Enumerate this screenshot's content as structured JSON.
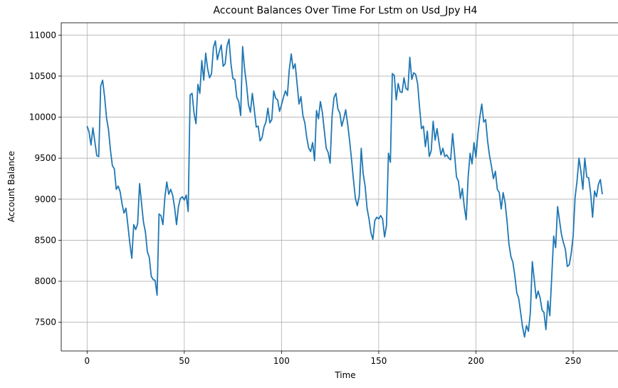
{
  "chart_data": {
    "type": "line",
    "title": "Account Balances Over Time For Lstm on Usd_Jpy H4",
    "xlabel": "Time",
    "ylabel": "Account Balance",
    "xlim": [
      -13.3,
      279.3
    ],
    "ylim": [
      7150,
      11150
    ],
    "xticks": [
      0,
      50,
      100,
      150,
      200,
      250
    ],
    "xtick_labels": [
      "0",
      "50",
      "100",
      "150",
      "200",
      "250"
    ],
    "yticks": [
      7500,
      8000,
      8500,
      9000,
      9500,
      10000,
      10500,
      11000
    ],
    "ytick_labels": [
      "7500",
      "8000",
      "8500",
      "9000",
      "9500",
      "10000",
      "10500",
      "11000"
    ],
    "grid": true,
    "series": [
      {
        "color": "#1f77b4",
        "x_start": 0,
        "x_step": 1,
        "values": [
          9890,
          9820,
          9660,
          9870,
          9700,
          9530,
          9520,
          10380,
          10450,
          10250,
          9990,
          9850,
          9600,
          9410,
          9370,
          9120,
          9160,
          9090,
          8940,
          8830,
          8890,
          8680,
          8460,
          8280,
          8690,
          8630,
          8700,
          9190,
          8950,
          8720,
          8600,
          8360,
          8290,
          8060,
          8020,
          8010,
          7830,
          8820,
          8800,
          8690,
          9020,
          9210,
          9060,
          9120,
          9050,
          8900,
          8690,
          8910,
          9010,
          9030,
          8990,
          9050,
          8850,
          10270,
          10290,
          10050,
          9920,
          10400,
          10290,
          10690,
          10450,
          10780,
          10590,
          10480,
          10530,
          10850,
          10930,
          10700,
          10800,
          10880,
          10620,
          10650,
          10870,
          10950,
          10650,
          10470,
          10460,
          10240,
          10190,
          10020,
          10860,
          10590,
          10400,
          10150,
          10060,
          10290,
          10090,
          9880,
          9890,
          9710,
          9750,
          9880,
          9940,
          10110,
          9930,
          9970,
          10320,
          10230,
          10210,
          10070,
          10150,
          10240,
          10320,
          10260,
          10580,
          10770,
          10590,
          10650,
          10410,
          10160,
          10250,
          10020,
          9930,
          9750,
          9620,
          9580,
          9690,
          9470,
          10080,
          9980,
          10190,
          10060,
          9840,
          9620,
          9570,
          9440,
          10010,
          10240,
          10290,
          10100,
          10050,
          9890,
          9980,
          10090,
          9920,
          9720,
          9490,
          9240,
          9010,
          8920,
          9040,
          9620,
          9310,
          9160,
          8890,
          8760,
          8590,
          8510,
          8740,
          8780,
          8760,
          8800,
          8760,
          8540,
          8680,
          9560,
          9450,
          10530,
          10510,
          10210,
          10410,
          10310,
          10300,
          10480,
          10350,
          10330,
          10730,
          10460,
          10540,
          10520,
          10410,
          10120,
          9860,
          9890,
          9640,
          9830,
          9520,
          9590,
          9950,
          9720,
          9860,
          9690,
          9540,
          9620,
          9520,
          9540,
          9500,
          9480,
          9800,
          9550,
          9270,
          9220,
          9010,
          9130,
          8910,
          8750,
          9270,
          9560,
          9430,
          9690,
          9510,
          9790,
          10000,
          10160,
          9940,
          9970,
          9710,
          9530,
          9400,
          9250,
          9340,
          9120,
          9080,
          8880,
          9080,
          8960,
          8730,
          8450,
          8300,
          8230,
          8070,
          7860,
          7790,
          7620,
          7440,
          7320,
          7460,
          7390,
          7620,
          8240,
          8020,
          7790,
          7880,
          7800,
          7650,
          7620,
          7410,
          7760,
          7580,
          8060,
          8550,
          8410,
          8910,
          8740,
          8570,
          8470,
          8390,
          8180,
          8200,
          8340,
          8550,
          9020,
          9220,
          9500,
          9340,
          9120,
          9500,
          9270,
          9260,
          9070,
          8780,
          9100,
          9030,
          9180,
          9240,
          9060
        ]
      }
    ]
  }
}
